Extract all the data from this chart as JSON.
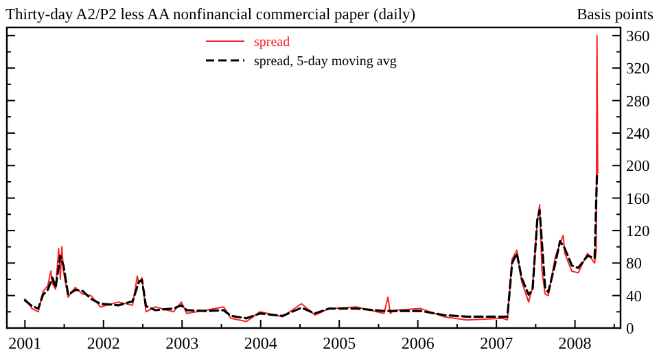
{
  "chart_data": {
    "type": "line",
    "title": "Thirty-day A2/P2 less AA nonfinancial commercial paper (daily)",
    "ylabel": "Basis points",
    "xlim": [
      2000.77,
      2008.58
    ],
    "ylim": [
      0,
      370
    ],
    "xticks": [
      {
        "value": 2001,
        "label": "2001"
      },
      {
        "value": 2001.5,
        "label": null
      },
      {
        "value": 2002,
        "label": "2002"
      },
      {
        "value": 2002.5,
        "label": null
      },
      {
        "value": 2003,
        "label": "2003"
      },
      {
        "value": 2003.5,
        "label": null
      },
      {
        "value": 2004,
        "label": "2004"
      },
      {
        "value": 2004.5,
        "label": null
      },
      {
        "value": 2005,
        "label": "2005"
      },
      {
        "value": 2005.5,
        "label": null
      },
      {
        "value": 2006,
        "label": "2006"
      },
      {
        "value": 2006.5,
        "label": null
      },
      {
        "value": 2007,
        "label": "2007"
      },
      {
        "value": 2007.5,
        "label": null
      },
      {
        "value": 2008,
        "label": "2008"
      },
      {
        "value": 2008.5,
        "label": null
      }
    ],
    "yticks": [
      0,
      {
        "value": 20,
        "label": null
      },
      40,
      {
        "value": 60,
        "label": null
      },
      80,
      {
        "value": 100,
        "label": null
      },
      120,
      {
        "value": 140,
        "label": null
      },
      160,
      {
        "value": 180,
        "label": null
      },
      200,
      {
        "value": 220,
        "label": null
      },
      240,
      {
        "value": 260,
        "label": null
      },
      280,
      {
        "value": 300,
        "label": null
      },
      320,
      {
        "value": 340,
        "label": null
      },
      360
    ],
    "grid": false,
    "legend": "top",
    "marker": "none",
    "series": [
      {
        "name": "spread",
        "color": "#ff2020",
        "line_style": "solid",
        "x": [
          2001.0,
          2001.05,
          2001.09,
          2001.17,
          2001.23,
          2001.29,
          2001.33,
          2001.35,
          2001.39,
          2001.43,
          2001.45,
          2001.47,
          2001.49,
          2001.55,
          2001.64,
          2001.73,
          2001.84,
          2001.96,
          2002.19,
          2002.37,
          2002.43,
          2002.45,
          2002.49,
          2002.54,
          2002.66,
          2002.89,
          2002.99,
          2003.06,
          2003.3,
          2003.53,
          2003.62,
          2003.82,
          2003.99,
          2004.28,
          2004.52,
          2004.69,
          2004.87,
          2005.22,
          2005.57,
          2005.62,
          2005.65,
          2005.7,
          2006.04,
          2006.33,
          2006.62,
          2007.08,
          2007.14,
          2007.2,
          2007.26,
          2007.32,
          2007.41,
          2007.46,
          2007.52,
          2007.55,
          2007.58,
          2007.62,
          2007.66,
          2007.75,
          2007.81,
          2007.85,
          2007.87,
          2007.96,
          2008.04,
          2008.16,
          2008.25,
          2008.27,
          2008.28,
          2008.29
        ],
        "values": [
          36,
          30,
          24,
          20,
          45,
          52,
          70,
          55,
          48,
          98,
          60,
          100,
          70,
          38,
          50,
          42,
          40,
          26,
          32,
          28,
          64,
          55,
          62,
          20,
          26,
          20,
          32,
          18,
          22,
          26,
          12,
          8,
          20,
          14,
          30,
          16,
          24,
          26,
          18,
          38,
          18,
          22,
          24,
          14,
          10,
          12,
          10,
          85,
          96,
          58,
          32,
          50,
          130,
          152,
          70,
          42,
          40,
          88,
          104,
          114,
          92,
          70,
          68,
          92,
          80,
          95,
          360,
          190
        ]
      },
      {
        "name": "spread, 5-day moving avg",
        "color": "#000000",
        "line_style": "dashed",
        "x": [
          2001.0,
          2001.09,
          2001.17,
          2001.23,
          2001.29,
          2001.35,
          2001.39,
          2001.45,
          2001.49,
          2001.55,
          2001.64,
          2001.73,
          2001.84,
          2001.96,
          2002.19,
          2002.37,
          2002.45,
          2002.49,
          2002.54,
          2002.66,
          2002.89,
          2002.99,
          2003.06,
          2003.3,
          2003.53,
          2003.62,
          2003.82,
          2003.99,
          2004.28,
          2004.52,
          2004.69,
          2004.87,
          2005.22,
          2005.57,
          2006.04,
          2006.33,
          2006.62,
          2007.08,
          2007.14,
          2007.2,
          2007.26,
          2007.32,
          2007.41,
          2007.46,
          2007.52,
          2007.55,
          2007.62,
          2007.66,
          2007.75,
          2007.81,
          2007.87,
          2007.96,
          2008.04,
          2008.16,
          2008.25,
          2008.28
        ],
        "values": [
          34,
          27,
          24,
          41,
          47,
          62,
          50,
          89,
          77,
          41,
          47,
          46,
          36,
          30,
          28,
          33,
          57,
          59,
          27,
          22,
          24,
          28,
          22,
          21,
          22,
          15,
          12,
          18,
          15,
          25,
          18,
          24,
          24,
          21,
          21,
          16,
          14,
          14,
          14,
          80,
          92,
          62,
          41,
          47,
          133,
          145,
          50,
          44,
          80,
          107,
          98,
          77,
          74,
          89,
          86,
          189
        ]
      }
    ]
  }
}
